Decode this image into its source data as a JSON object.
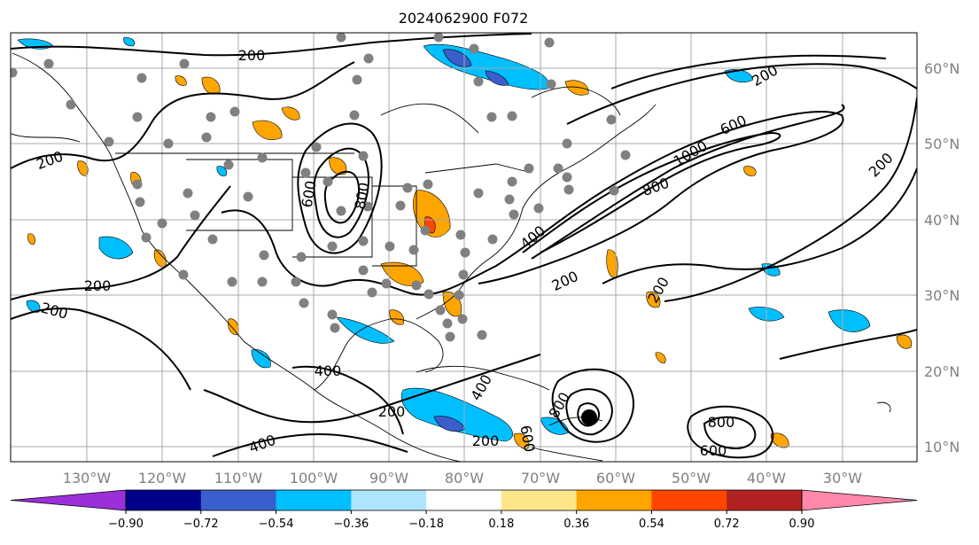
{
  "title": "2024062900 F072",
  "map": {
    "lat_labels": [
      "60°N",
      "50°N",
      "40°N",
      "30°N",
      "20°N",
      "10°N"
    ],
    "lon_labels": [
      "130°W",
      "120°W",
      "110°W",
      "100°W",
      "90°W",
      "80°W",
      "70°W",
      "60°W",
      "50°W",
      "40°W",
      "30°W"
    ],
    "contour_labels": [
      "200",
      "200",
      "200",
      "200",
      "200",
      "200",
      "200",
      "200",
      "400",
      "400",
      "400",
      "600",
      "600",
      "600",
      "600",
      "800",
      "800",
      "800",
      "800",
      "1000",
      "200",
      "200",
      "400"
    ]
  },
  "colorbar": {
    "ticks": [
      "−0.90",
      "−0.72",
      "−0.54",
      "−0.36",
      "−0.18",
      "0.18",
      "0.36",
      "0.54",
      "0.72",
      "0.90"
    ],
    "colors": [
      "#9b30d9",
      "#00008b",
      "#3a5fcd",
      "#00bfff",
      "#afe4ff",
      "#ffffff",
      "#fde68a",
      "#ffa500",
      "#ff4500",
      "#b22222",
      "#ff88aa"
    ],
    "under_color": "#9b30d9",
    "over_color": "#ff88aa"
  },
  "colors": {
    "positive_fill": "#ffa500",
    "negative_fill": "#00bfff",
    "strong_negative_fill": "#3a5fcd",
    "station_dot": "#808080",
    "grid": "#a9a9a9"
  }
}
